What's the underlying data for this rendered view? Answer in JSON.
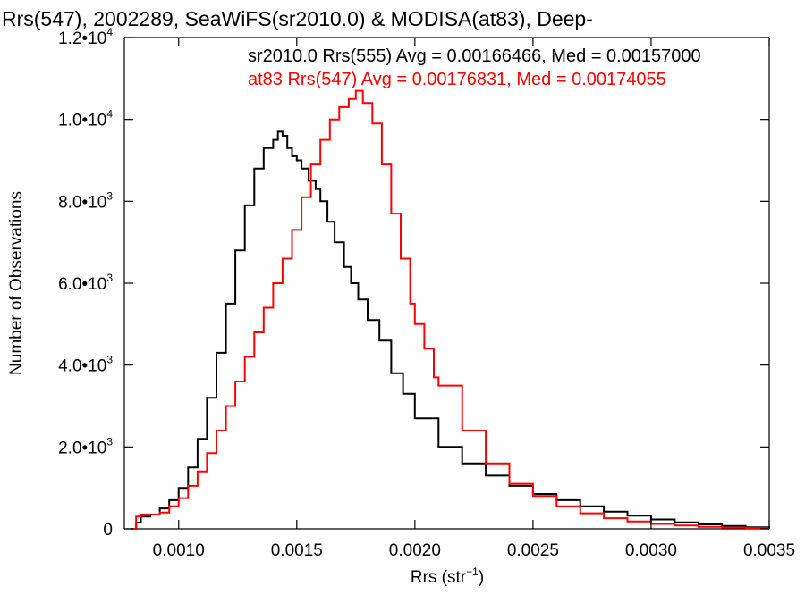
{
  "chart_data": {
    "type": "line",
    "title": "Rrs(547), 2002289, SeaWiFS(sr2010.0) & MODISA(at83), Deep-",
    "xlabel": "Rrs (str",
    "xlabel_sup": "−1",
    "xlabel_tail": ")",
    "ylabel": "Number of Observations",
    "xlim": [
      0.00077,
      0.0035
    ],
    "ylim": [
      0,
      12000
    ],
    "grid": false,
    "step": true,
    "x_ticks": [
      {
        "value": 0.001,
        "label": "0.0010"
      },
      {
        "value": 0.0015,
        "label": "0.0015"
      },
      {
        "value": 0.002,
        "label": "0.0020"
      },
      {
        "value": 0.0025,
        "label": "0.0025"
      },
      {
        "value": 0.003,
        "label": "0.0030"
      },
      {
        "value": 0.0035,
        "label": "0.0035"
      }
    ],
    "y_ticks": [
      {
        "value": 0,
        "mant": "0",
        "exp": ""
      },
      {
        "value": 2000,
        "mant": "2.0•10",
        "exp": "3"
      },
      {
        "value": 4000,
        "mant": "4.0•10",
        "exp": "3"
      },
      {
        "value": 6000,
        "mant": "6.0•10",
        "exp": "3"
      },
      {
        "value": 8000,
        "mant": "8.0•10",
        "exp": "3"
      },
      {
        "value": 10000,
        "mant": "1.0•10",
        "exp": "4"
      },
      {
        "value": 12000,
        "mant": "1.2•10",
        "exp": "4"
      }
    ],
    "annotations": [
      {
        "text": "sr2010.0 Rrs(555) Avg = 0.00166466, Med = 0.00157000",
        "color": "#000000"
      },
      {
        "text": "at83 Rrs(547) Avg = 0.00176831, Med = 0.00174055",
        "color": "#ff0000"
      }
    ],
    "series": [
      {
        "color": "#000000",
        "x": [
          0.0008,
          0.00082,
          0.00084,
          0.00088,
          0.00092,
          0.00096,
          0.001,
          0.00104,
          0.00108,
          0.00112,
          0.00116,
          0.0012,
          0.00124,
          0.00128,
          0.00132,
          0.00136,
          0.0014,
          0.00142,
          0.00144,
          0.00146,
          0.00148,
          0.0015,
          0.00152,
          0.00155,
          0.00158,
          0.0016,
          0.00163,
          0.00166,
          0.0017,
          0.00173,
          0.00176,
          0.0018,
          0.00185,
          0.0019,
          0.00195,
          0.002,
          0.0021,
          0.0022,
          0.0023,
          0.0024,
          0.0025,
          0.0026,
          0.0027,
          0.0028,
          0.0029,
          0.003,
          0.0031,
          0.0032,
          0.0033,
          0.0034,
          0.0035
        ],
        "y": [
          0,
          150,
          300,
          350,
          500,
          700,
          1000,
          1500,
          2200,
          3200,
          4300,
          5500,
          6800,
          7900,
          8800,
          9300,
          9500,
          9700,
          9600,
          9300,
          9100,
          9000,
          8800,
          8500,
          8300,
          8000,
          7500,
          7000,
          6400,
          6000,
          5600,
          5100,
          4600,
          3800,
          3300,
          2700,
          2000,
          1600,
          1300,
          1050,
          850,
          700,
          550,
          420,
          320,
          230,
          160,
          110,
          70,
          40,
          20
        ]
      },
      {
        "color": "#ff0000",
        "x": [
          0.0008,
          0.00082,
          0.00084,
          0.00088,
          0.00092,
          0.00096,
          0.001,
          0.00104,
          0.00108,
          0.00112,
          0.00116,
          0.0012,
          0.00124,
          0.00128,
          0.00132,
          0.00136,
          0.0014,
          0.00144,
          0.00148,
          0.00152,
          0.00156,
          0.0016,
          0.00164,
          0.00168,
          0.00172,
          0.00175,
          0.00178,
          0.00182,
          0.00186,
          0.0019,
          0.00194,
          0.00198,
          0.002,
          0.00204,
          0.00208,
          0.0021,
          0.0022,
          0.0023,
          0.0024,
          0.0025,
          0.0026,
          0.0027,
          0.0028,
          0.0029,
          0.003,
          0.0031,
          0.0032,
          0.0033,
          0.0034,
          0.0035
        ],
        "y": [
          0,
          300,
          350,
          350,
          400,
          550,
          750,
          1050,
          1400,
          1850,
          2400,
          3000,
          3600,
          4200,
          4800,
          5400,
          6000,
          6600,
          7300,
          8100,
          8900,
          9500,
          10000,
          10300,
          10500,
          10700,
          10400,
          9900,
          8900,
          7700,
          6600,
          5500,
          5000,
          4400,
          3700,
          3500,
          2400,
          1600,
          1100,
          800,
          550,
          380,
          260,
          180,
          120,
          80,
          50,
          30,
          20,
          10
        ]
      }
    ]
  }
}
